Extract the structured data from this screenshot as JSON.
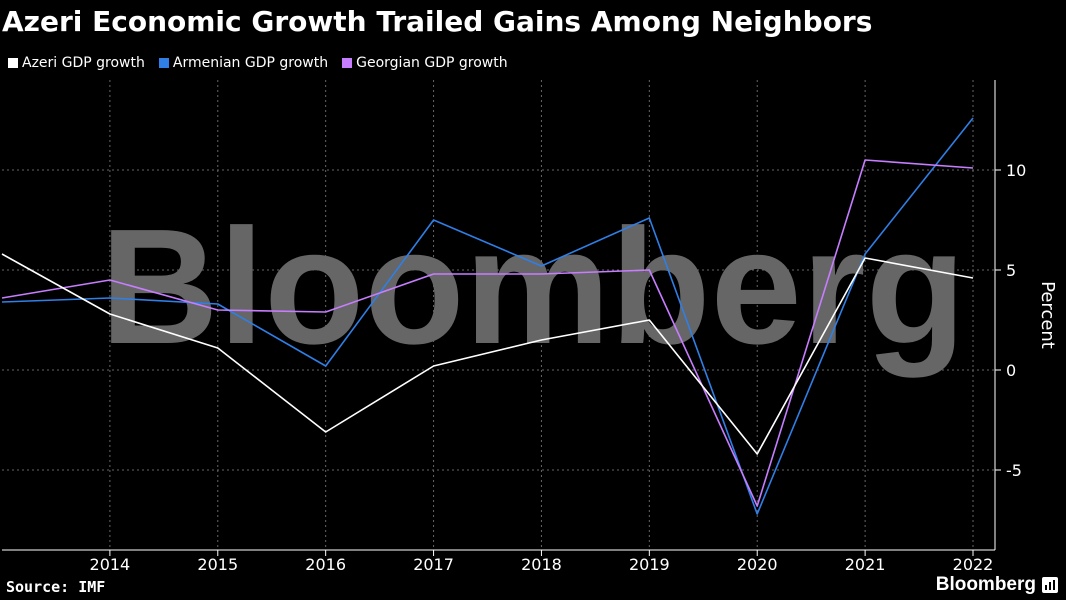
{
  "title": "Azeri Economic Growth Trailed Gains Among Neighbors",
  "watermark": "Bloomberg",
  "footer": {
    "source": "Source: IMF",
    "brand": "Bloomberg",
    "brand_icon": "bloomberg-terminal-icon"
  },
  "colors": {
    "background": "#000000",
    "azeri": "#ffffff",
    "armenian": "#2f7fe6",
    "georgian": "#c77dff",
    "grid": "#666666"
  },
  "chart_data": {
    "type": "line",
    "title": "Azeri Economic Growth Trailed Gains Among Neighbors",
    "xlabel": "",
    "ylabel": "Percent",
    "x": [
      2013,
      2014,
      2015,
      2016,
      2017,
      2018,
      2019,
      2020,
      2021,
      2022
    ],
    "xticks": [
      "2014",
      "2015",
      "2016",
      "2017",
      "2018",
      "2019",
      "2020",
      "2021",
      "2022"
    ],
    "yticks": [
      "-5",
      "0",
      "5",
      "10"
    ],
    "ylim": [
      -9,
      14.5
    ],
    "grid": true,
    "legend": "top-left",
    "series": [
      {
        "name": "Azeri GDP growth",
        "color": "#ffffff",
        "values": [
          5.8,
          2.8,
          1.1,
          -3.1,
          0.2,
          1.5,
          2.5,
          -4.2,
          5.6,
          4.6
        ]
      },
      {
        "name": "Armenian GDP growth",
        "color": "#2f7fe6",
        "values": [
          3.4,
          3.6,
          3.3,
          0.2,
          7.5,
          5.2,
          7.6,
          -7.2,
          5.8,
          12.6
        ]
      },
      {
        "name": "Georgian GDP growth",
        "color": "#c77dff",
        "values": [
          3.6,
          4.5,
          3.0,
          2.9,
          4.8,
          4.8,
          5.0,
          -6.8,
          10.5,
          10.1
        ]
      }
    ]
  }
}
